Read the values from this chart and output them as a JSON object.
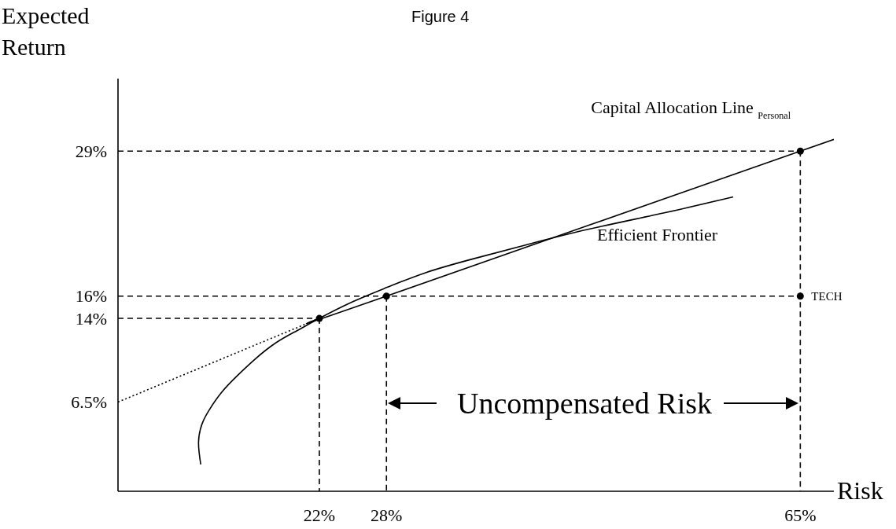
{
  "chart_data": {
    "type": "line",
    "title": "Figure 4",
    "xlabel": "Risk",
    "ylabel": "Expected Return",
    "xlim": [
      4,
      68
    ],
    "ylim": [
      -1.5,
      35.5
    ],
    "xticks": [
      {
        "value": 22,
        "label": "22%"
      },
      {
        "value": 28,
        "label": "28%"
      },
      {
        "value": 65,
        "label": "65%"
      }
    ],
    "yticks": [
      {
        "value": 6.5,
        "label": "6.5%"
      },
      {
        "value": 14,
        "label": "14%"
      },
      {
        "value": 16,
        "label": "16%"
      },
      {
        "value": 29,
        "label": "29%"
      }
    ],
    "marker": "none",
    "series": [
      {
        "name": "Efficient Frontier",
        "color": "#000000",
        "line_style": "solid",
        "x": [
          11.4,
          11.2,
          11.5,
          12.1,
          13.2,
          14.6,
          16.2,
          18.1,
          20,
          22,
          25,
          28.1,
          31.5,
          35.6,
          40.5,
          46.1,
          53,
          59
        ],
        "values": [
          0.9,
          2.9,
          4.5,
          5.7,
          7.3,
          8.8,
          10.3,
          11.8,
          12.9,
          14,
          15.5,
          16.8,
          18.1,
          19.3,
          20.6,
          22,
          23.5,
          24.9
        ]
      },
      {
        "name": "Capital Allocation Line $_{Personal}$",
        "color": "#000000",
        "line_style": "solid",
        "x": [
          22,
          28,
          65,
          68
        ],
        "values": [
          14,
          16,
          29,
          30
        ]
      },
      {
        "color": "#000000",
        "line_style": "dotted",
        "x": [
          4,
          22
        ],
        "values": [
          6.5,
          14
        ]
      },
      {
        "color": "#000000",
        "line_style": "dashed",
        "x": [
          4,
          65
        ],
        "values": [
          29,
          29
        ]
      },
      {
        "color": "#000000",
        "line_style": "dashed",
        "x": [
          65,
          65
        ],
        "values": [
          29,
          -1.5
        ]
      },
      {
        "color": "#000000",
        "line_style": "dashed",
        "x": [
          4,
          65
        ],
        "values": [
          16,
          16
        ]
      },
      {
        "color": "#000000",
        "line_style": "dashed",
        "x": [
          4,
          22
        ],
        "values": [
          14,
          14
        ]
      },
      {
        "color": "#000000",
        "line_style": "dashed",
        "x": [
          22,
          22
        ],
        "values": [
          14,
          -1.5
        ]
      },
      {
        "color": "#000000",
        "line_style": "dashed",
        "x": [
          28,
          28
        ],
        "values": [
          16,
          -1.5
        ]
      },
      {
        "type": "scatter",
        "marker": "circle",
        "color": "#000000",
        "x": [
          22,
          28,
          65,
          65
        ],
        "values": [
          14,
          16,
          29,
          16
        ]
      }
    ],
    "annotations": [
      {
        "text": "TECH",
        "x": 65,
        "y": 16
      },
      "Uncompensated Risk"
    ]
  }
}
